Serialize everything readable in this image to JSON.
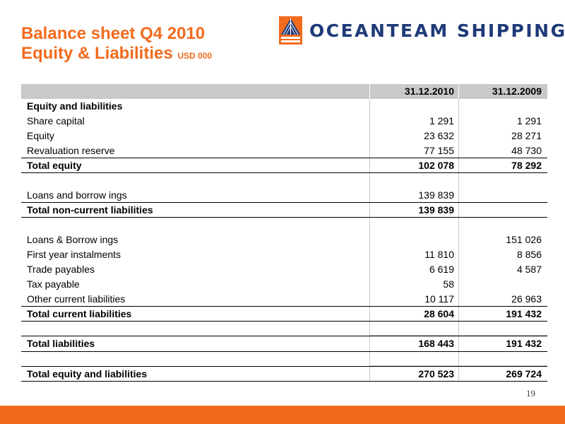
{
  "title": {
    "line1": "Balance sheet Q4 2010",
    "line2": "Equity & Liabilities",
    "unit": "USD 000"
  },
  "logo": {
    "text": "OCEANTEAM SHIPPING",
    "icon": "ship-sail-icon",
    "colors": {
      "text": "#1e3a78",
      "orange": "#f26b1d"
    }
  },
  "table": {
    "headers": [
      "",
      "31.12.2010",
      "31.12.2009"
    ],
    "rows": [
      {
        "label": "Equity and liabilities",
        "v2010": "",
        "v2009": ""
      },
      {
        "label": "Share capital",
        "v2010": "1 291",
        "v2009": "1 291"
      },
      {
        "label": "Equity",
        "v2010": "23 632",
        "v2009": "28 271"
      },
      {
        "label": "Revaluation reserve",
        "v2010": "77 155",
        "v2009": "48 730"
      },
      {
        "label": "Total equity",
        "v2010": "102 078",
        "v2009": "78 292"
      },
      {
        "label": "Loans and borrow ings",
        "v2010": "139 839",
        "v2009": ""
      },
      {
        "label": "Total non-current liabilities",
        "v2010": "139 839",
        "v2009": ""
      },
      {
        "label": "Loans & Borrow ings",
        "v2010": "",
        "v2009": "151 026"
      },
      {
        "label": "First year instalments",
        "v2010": "11 810",
        "v2009": "8 856"
      },
      {
        "label": "Trade payables",
        "v2010": "6 619",
        "v2009": "4 587"
      },
      {
        "label": "Tax payable",
        "v2010": "58",
        "v2009": ""
      },
      {
        "label": "Other current liabilities",
        "v2010": "10 117",
        "v2009": "26 963"
      },
      {
        "label": "Total current liabilities",
        "v2010": "28 604",
        "v2009": "191 432"
      },
      {
        "label": "Total liabilities",
        "v2010": "168 443",
        "v2009": "191 432"
      },
      {
        "label": "Total equity and liabilities",
        "v2010": "270 523",
        "v2009": "269 724"
      }
    ]
  },
  "page_number": "19",
  "colors": {
    "accent": "#f26b1d",
    "header_bg": "#c9c9c9"
  }
}
